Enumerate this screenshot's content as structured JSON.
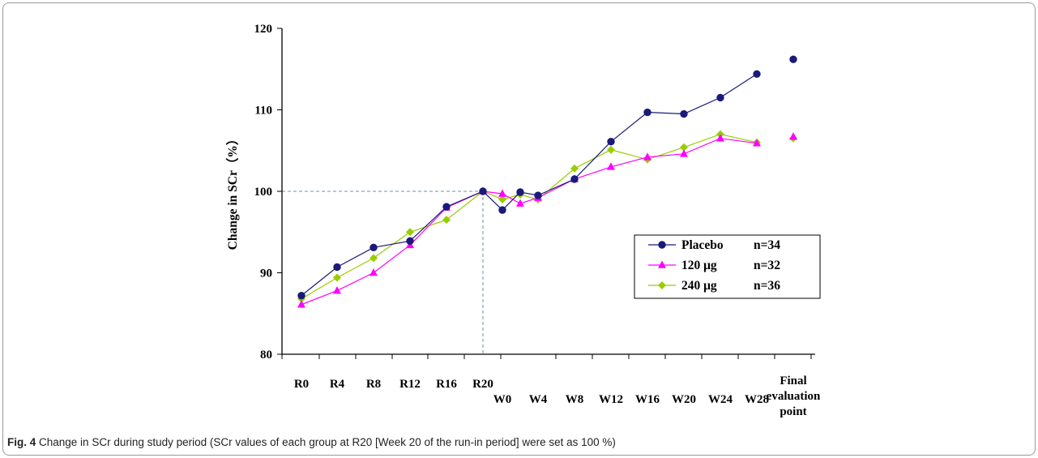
{
  "chart_data": {
    "type": "line",
    "ylabel": "Change in SCr（%）",
    "ylim": [
      80,
      120
    ],
    "yticks": [
      80,
      90,
      100,
      110,
      120
    ],
    "x_tick_labels": [
      "R0",
      "R4",
      "R8",
      "R12",
      "R16",
      "R20",
      "W0",
      "W4",
      "W8",
      "W12",
      "W16",
      "W20",
      "W24",
      "W28"
    ],
    "x_final_label": [
      "Final",
      "evaluation",
      "point"
    ],
    "points": [
      "R0",
      "R4",
      "R8",
      "R12",
      "R16",
      "R20",
      "W0",
      "W2",
      "W4",
      "W8",
      "W12",
      "W16",
      "W20",
      "W24",
      "W28",
      "Final evaluation point"
    ],
    "reference": {
      "x": "R20",
      "y": 100
    },
    "legend_position": "right-center",
    "series": [
      {
        "name": "Placebo",
        "n": "n=34",
        "color": "#1a1a7a",
        "marker": "circle",
        "values": [
          87.2,
          90.7,
          93.1,
          93.9,
          98.1,
          100.0,
          97.7,
          99.9,
          99.5,
          101.5,
          106.1,
          109.7,
          109.5,
          111.5,
          114.4,
          116.2
        ]
      },
      {
        "name": "120 μg",
        "n": "n=32",
        "color": "#ff00ff",
        "marker": "triangle",
        "values": [
          86.1,
          87.8,
          90.0,
          93.4,
          98.0,
          100.0,
          99.7,
          98.5,
          99.2,
          101.5,
          103.0,
          104.2,
          104.6,
          106.5,
          105.9,
          106.7
        ]
      },
      {
        "name": "240 μg",
        "n": "n=36",
        "color": "#99cc00",
        "marker": "diamond",
        "values": [
          86.8,
          89.4,
          91.8,
          95.0,
          96.5,
          100.0,
          99.0,
          99.6,
          99.0,
          102.8,
          105.1,
          103.9,
          105.4,
          107.0,
          106.0,
          106.5
        ]
      }
    ]
  },
  "caption": {
    "label": "Fig. 4",
    "text": " Change in SCr during study period (SCr values of each group at R20 [Week 20 of the run-in period] were set as 100 %)"
  }
}
